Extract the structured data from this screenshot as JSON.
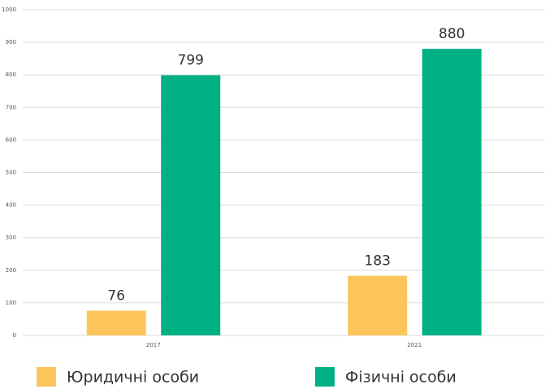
{
  "chart_data": {
    "type": "bar",
    "categories": [
      "2017",
      "2021"
    ],
    "series": [
      {
        "name": "Юридичні особи",
        "color": "#fcc55a",
        "values": [
          76,
          183
        ]
      },
      {
        "name": "Фізичні особи",
        "color": "#00b085",
        "values": [
          799,
          880
        ]
      }
    ],
    "ylim": [
      0,
      1000
    ],
    "yticks": [
      0,
      100,
      200,
      300,
      400,
      500,
      600,
      700,
      800,
      900,
      1000
    ],
    "grid": true,
    "legend": "bottom"
  }
}
